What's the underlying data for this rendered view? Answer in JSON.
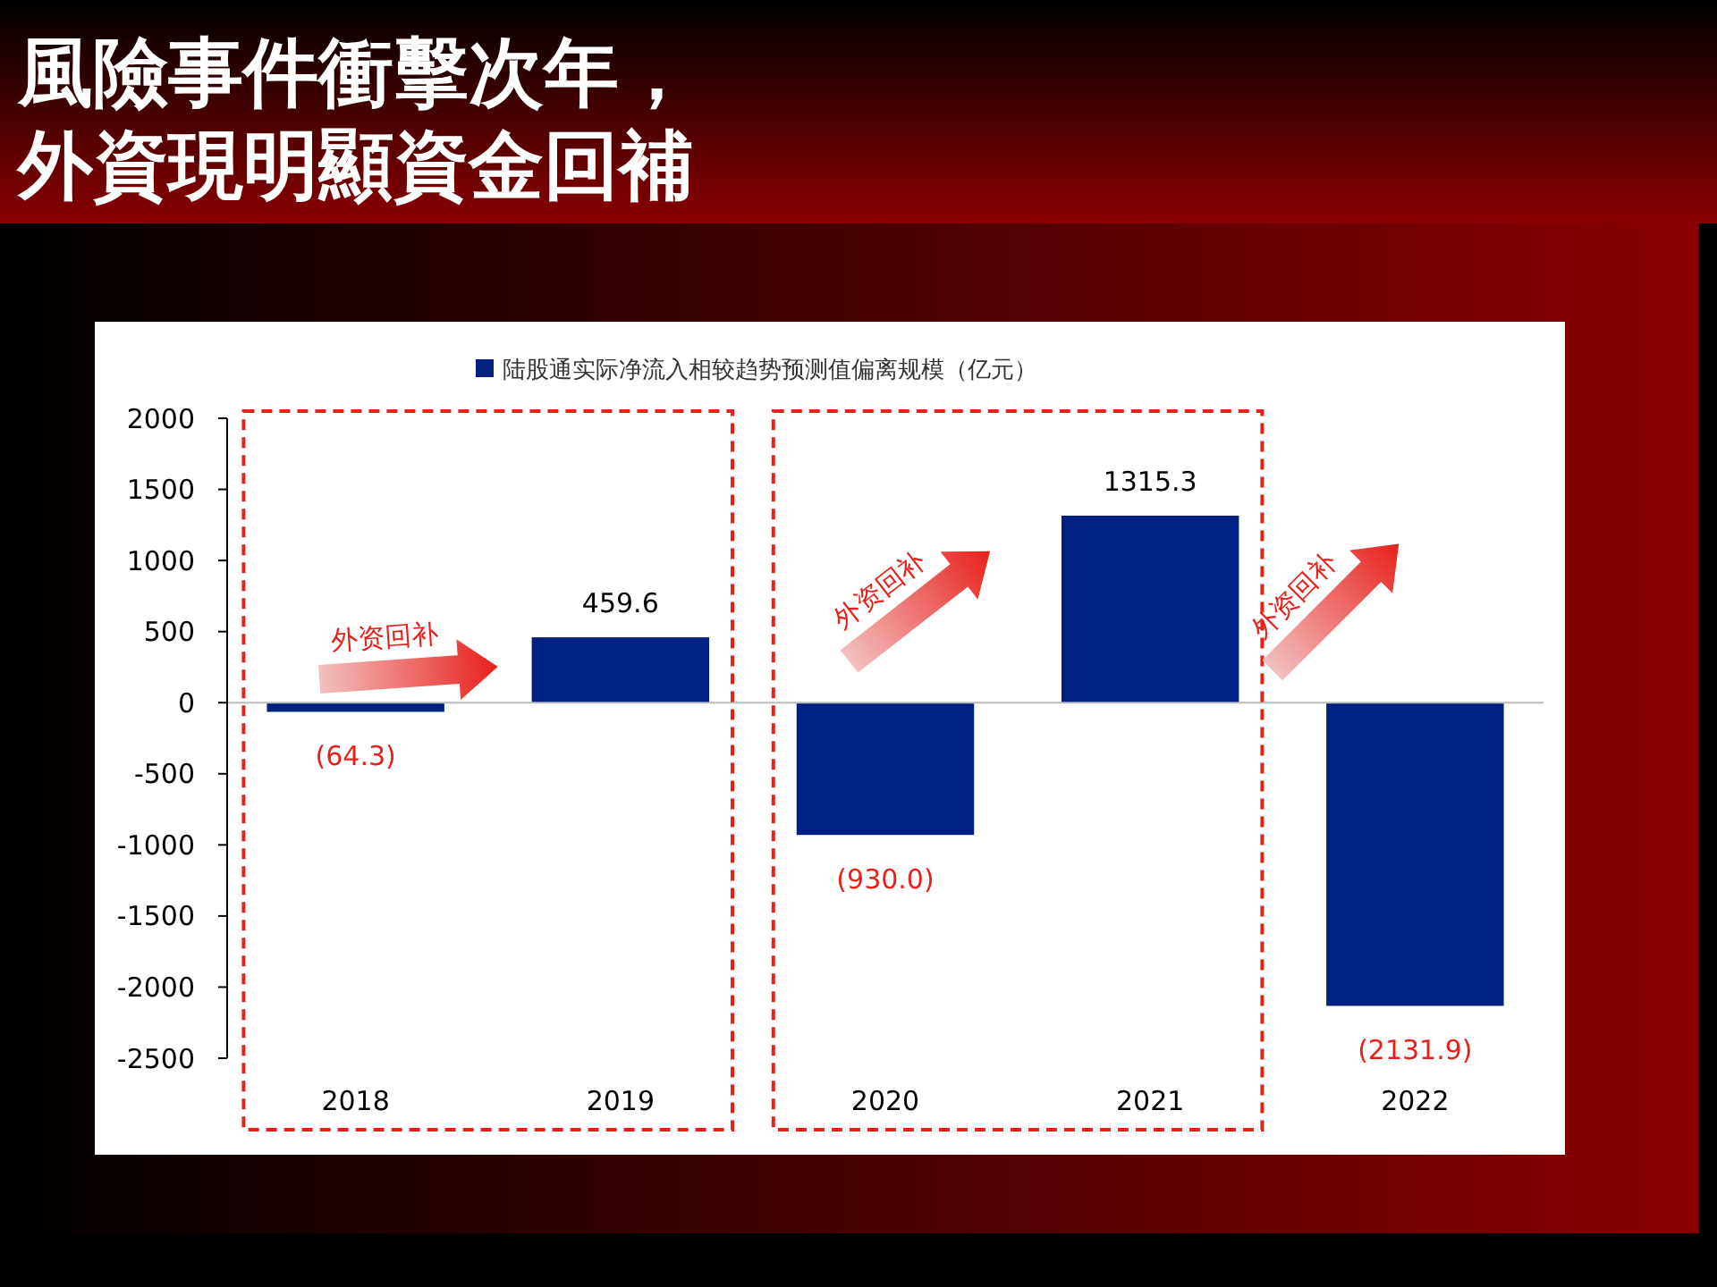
{
  "chart_data": {
    "type": "bar",
    "title": "風險事件衝擊次年，外資現明顯資金回補",
    "categories": [
      "2018",
      "2019",
      "2020",
      "2021",
      "2022"
    ],
    "series": [
      {
        "name": "陆股通实际净流入相较趋势预测值偏离规模（亿元）",
        "color": "#002082",
        "values": [
          -64.3,
          459.6,
          -930.0,
          1315.3,
          -2131.9
        ]
      }
    ],
    "value_labels": [
      "(64.3)",
      "459.6",
      "(930.0)",
      "1315.3",
      "(2131.9)"
    ],
    "ylim": [
      -2500,
      2000
    ],
    "yticks": [
      -2500,
      -2000,
      -1500,
      -1000,
      -500,
      0,
      500,
      1000,
      1500,
      2000
    ],
    "legend": "top",
    "annotations": [
      "外资回补",
      "外资回补",
      "外资回补"
    ]
  }
}
